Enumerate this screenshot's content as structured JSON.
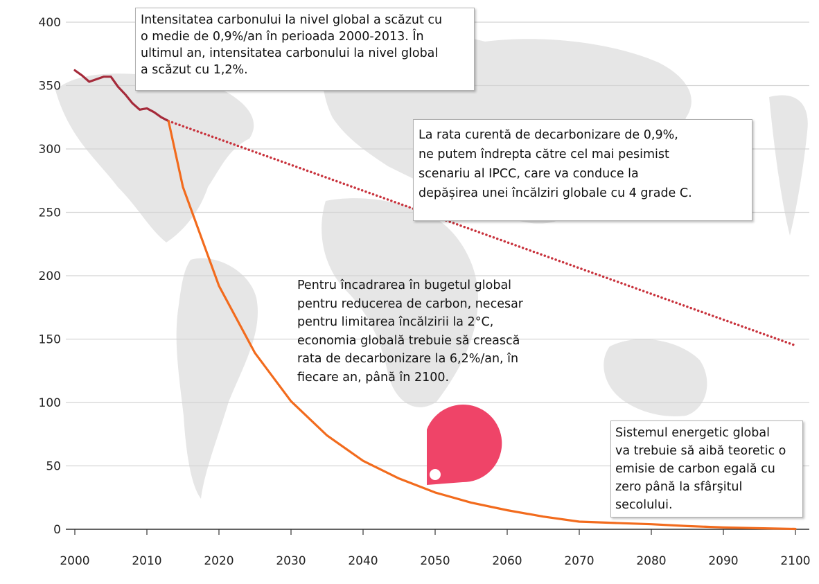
{
  "chart_data": {
    "type": "line",
    "title": "",
    "xlabel": "",
    "ylabel": "",
    "xlim": [
      2000,
      2100
    ],
    "ylim": [
      0,
      400
    ],
    "x_ticks": [
      "2000",
      "2010",
      "2020",
      "2030",
      "2040",
      "2050",
      "2060",
      "2070",
      "2080",
      "2090",
      "2100"
    ],
    "y_ticks": [
      "0",
      "50",
      "100",
      "150",
      "200",
      "250",
      "300",
      "350",
      "400"
    ],
    "grid": "horizontal",
    "series": [
      {
        "name": "",
        "style": "solid",
        "color": "#a52a3a",
        "x": [
          2000,
          2001,
          2002,
          2003,
          2004,
          2005,
          2006,
          2007,
          2008,
          2009,
          2010,
          2011,
          2012,
          2013
        ],
        "values": [
          362,
          358,
          353,
          355,
          357,
          357,
          349,
          343,
          336,
          331,
          332,
          329,
          325,
          322
        ]
      },
      {
        "name": "",
        "style": "dotted",
        "color": "#c8323c",
        "x": [
          2013,
          2100
        ],
        "values": [
          322,
          145
        ]
      },
      {
        "name": "",
        "style": "solid",
        "color": "#f26b1d",
        "x": [
          2013,
          2015,
          2020,
          2025,
          2030,
          2035,
          2040,
          2045,
          2050,
          2055,
          2060,
          2065,
          2070,
          2075,
          2080,
          2085,
          2090,
          2095,
          2100
        ],
        "values": [
          322,
          270,
          192,
          139,
          101,
          74,
          54,
          40,
          29,
          21,
          15,
          10,
          6,
          5,
          4,
          2.5,
          1.5,
          0.8,
          0.3
        ]
      }
    ],
    "annotations": [
      [
        "Intensitatea carbonului la nivel global a scăzut cu",
        "o medie de 0,9%/an în perioada 2000-2013. În",
        "ultimul an, intensitatea carbonului la nivel global",
        "a scăzut cu 1,2%."
      ],
      [
        "La rata curentă de decarbonizare de 0,9%,",
        "ne putem îndrepta către cel mai pesimist",
        "scenariu al IPCC, care va conduce la",
        "depășirea unei încălziri globale cu 4 grade C."
      ],
      [
        "Pentru încadrarea în bugetul global",
        "pentru reducerea de carbon, necesar",
        "pentru limitarea încălzirii la 2°C,",
        "economia globală trebuie să crească",
        "rata de decarbonizare la 6,2%/an, în",
        "fiecare an, până în 2100."
      ],
      [
        "Sistemul energetic global",
        "va trebuie să aibă teoretic o",
        "emisie de carbon egală cu",
        "zero până la sfârşitul",
        "secolului."
      ]
    ],
    "colors": {
      "historical": "#a52a3a",
      "trend_dotted": "#c8323c",
      "target": "#f26b1d",
      "map": "#e6e6e6",
      "grid": "#d4d4d4",
      "marker": "#ef4468"
    }
  }
}
